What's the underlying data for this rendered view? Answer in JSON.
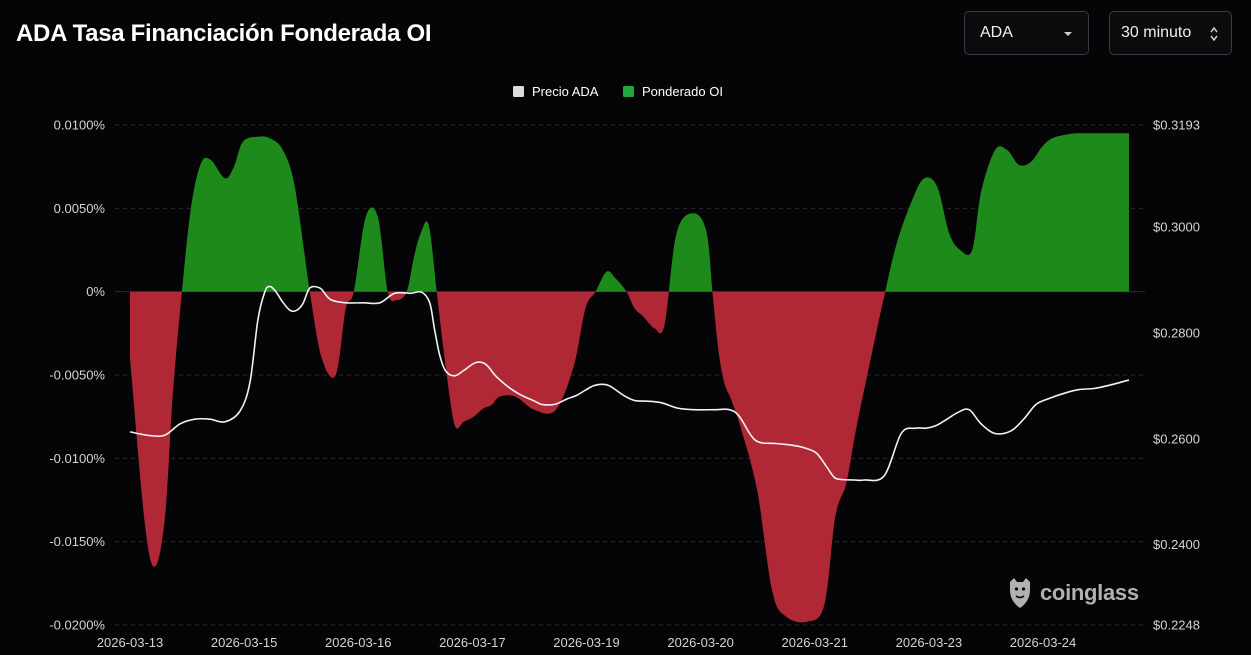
{
  "header": {
    "title": "ADA Tasa Financiación Fonderada OI"
  },
  "controls": {
    "asset_value": "ADA",
    "interval_value": "30 minuto"
  },
  "watermark": {
    "text": "coinglass"
  },
  "colors": {
    "positive": "#1f8a1c",
    "negative": "#b02836",
    "price_line": "#f2f2f2",
    "grid": "#2c2c30",
    "background": "#050508"
  },
  "chart_data": {
    "type": "area",
    "title": "ADA Tasa Financiación Fonderada OI",
    "legend": {
      "position": "top-center",
      "entries": [
        "Precio ADA",
        "Ponderado OI"
      ]
    },
    "x_ticks": [
      "2026-03-13",
      "2026-03-15",
      "2026-03-16",
      "2026-03-17",
      "2026-03-19",
      "2026-03-20",
      "2026-03-21",
      "2026-03-23",
      "2026-03-24"
    ],
    "x_range": [
      0,
      100
    ],
    "left_axis": {
      "label": "Ponderado OI",
      "range": [
        -0.02,
        0.01
      ],
      "ticks": [
        0.01,
        0.005,
        0,
        -0.005,
        -0.01,
        -0.015,
        -0.02
      ],
      "tick_labels": [
        "0.0100%",
        "0.0050%",
        "0%",
        "-0.0050%",
        "-0.0100%",
        "-0.0150%",
        "-0.0200%"
      ]
    },
    "right_axis": {
      "label": "Precio ADA",
      "range": [
        0.2248,
        0.3193
      ],
      "ticks": [
        0.3193,
        0.3,
        0.28,
        0.26,
        0.24,
        0.2248
      ],
      "tick_labels": [
        "$0.3193",
        "$0.3000",
        "$0.2800",
        "$0.2600",
        "$0.2400",
        "$0.2248"
      ]
    },
    "series": [
      {
        "name": "Ponderado OI",
        "axis": "left",
        "x": [
          0,
          1.5,
          2.5,
          3.5,
          4.3,
          5.2,
          6.1,
          7.1,
          8.1,
          9.5,
          10.4,
          11.3,
          12.8,
          14.0,
          15.3,
          16.5,
          18.0,
          19.2,
          20.6,
          21.6,
          22.4,
          23.6,
          24.8,
          25.8,
          26.7,
          27.7,
          28.4,
          29.1,
          29.9,
          30.7,
          31.6,
          32.5,
          33.4,
          34.4,
          35.4,
          36.2,
          37.0,
          38.6,
          40.5,
          42.6,
          44.4,
          45.6,
          46.6,
          47.7,
          48.6,
          49.7,
          50.5,
          51.4,
          52.5,
          53.5,
          54.7,
          56.4,
          57.7,
          58.3,
          58.9,
          59.5,
          60.2,
          61.3,
          62.8,
          64.3,
          65.7,
          67.8,
          69.5,
          70.6,
          71.7,
          72.6,
          73.8,
          75.6,
          76.8,
          78.3,
          79.5,
          80.8,
          82.0,
          83.1,
          84.3,
          85.2,
          86.6,
          87.8,
          89.0,
          90.2,
          91.3,
          92.3,
          93.5,
          94.8,
          96.1,
          97.8,
          100
        ],
        "values": [
          -0.004,
          -0.014,
          -0.0165,
          -0.0135,
          -0.006,
          0,
          0.005,
          0.0077,
          0.0079,
          0.0068,
          0.0075,
          0.009,
          0.0093,
          0.0092,
          0.0085,
          0.0063,
          0,
          -0.004,
          -0.005,
          -0.001,
          0,
          0.0045,
          0.0045,
          0,
          -0.0005,
          0,
          0.002,
          0.0035,
          0.004,
          0,
          -0.0045,
          -0.008,
          -0.0078,
          -0.0075,
          -0.007,
          -0.0068,
          -0.0063,
          -0.0063,
          -0.0071,
          -0.0071,
          -0.0045,
          -0.001,
          0,
          0.0012,
          0.0008,
          0,
          -0.001,
          -0.0015,
          -0.0022,
          -0.002,
          0.0035,
          0.0047,
          0.0036,
          0,
          -0.0035,
          -0.0055,
          -0.0065,
          -0.0085,
          -0.012,
          -0.018,
          -0.0195,
          -0.0198,
          -0.0188,
          -0.0135,
          -0.0115,
          -0.0085,
          -0.005,
          0,
          0.003,
          0.0055,
          0.0068,
          0.0063,
          0.0035,
          0.0025,
          0.0025,
          0.006,
          0.0085,
          0.0085,
          0.0076,
          0.0078,
          0.0087,
          0.0092,
          0.0094,
          0.0095,
          0.0095,
          0.0095,
          0.0095
        ]
      },
      {
        "name": "Precio ADA",
        "axis": "right",
        "x": [
          0,
          2.0,
          3.5,
          5.0,
          6.5,
          8.0,
          9.5,
          11.0,
          12.0,
          12.8,
          13.5,
          14.0,
          14.6,
          15.3,
          16.0,
          16.6,
          17.3,
          18.0,
          19.0,
          19.6,
          20.2,
          21.6,
          23.4,
          25.0,
          26.5,
          28.1,
          29.2,
          30.0,
          30.5,
          31.0,
          31.6,
          32.5,
          33.4,
          34.6,
          35.6,
          36.6,
          37.8,
          39.0,
          40.4,
          41.2,
          42.5,
          43.7,
          44.7,
          45.6,
          46.4,
          47.2,
          48.0,
          49.5,
          50.6,
          51.8,
          53.2,
          54.8,
          56.4,
          58.5,
          60.0,
          61.0,
          62.6,
          64.7,
          66.2,
          67.5,
          68.7,
          69.7,
          70.5,
          71.2,
          72.5,
          73.5,
          75.5,
          77.2,
          78.6,
          79.7,
          80.7,
          81.7,
          82.9,
          84.0,
          85.2,
          86.6,
          88.2,
          89.5,
          90.7,
          92.0,
          93.5,
          95.0,
          96.5,
          98.0,
          100
        ],
        "values": [
          0.2613,
          0.2606,
          0.2607,
          0.2628,
          0.2637,
          0.2637,
          0.2632,
          0.2652,
          0.2706,
          0.2825,
          0.2878,
          0.2888,
          0.2878,
          0.2858,
          0.2843,
          0.2842,
          0.2855,
          0.2885,
          0.2885,
          0.2872,
          0.2862,
          0.2857,
          0.2857,
          0.2857,
          0.2875,
          0.2875,
          0.2877,
          0.2857,
          0.2805,
          0.2758,
          0.2728,
          0.2719,
          0.2729,
          0.2744,
          0.2741,
          0.2719,
          0.2699,
          0.2684,
          0.2672,
          0.2665,
          0.2665,
          0.2675,
          0.2682,
          0.2692,
          0.27,
          0.2703,
          0.27,
          0.2681,
          0.2672,
          0.2671,
          0.2668,
          0.2658,
          0.2655,
          0.2655,
          0.2655,
          0.2642,
          0.2597,
          0.2591,
          0.2588,
          0.2583,
          0.2573,
          0.2548,
          0.2527,
          0.2523,
          0.2522,
          0.2522,
          0.253,
          0.261,
          0.262,
          0.262,
          0.2625,
          0.2636,
          0.265,
          0.2655,
          0.2628,
          0.261,
          0.2615,
          0.2638,
          0.2665,
          0.2676,
          0.2686,
          0.2693,
          0.2695,
          0.2701,
          0.2711
        ]
      }
    ]
  }
}
